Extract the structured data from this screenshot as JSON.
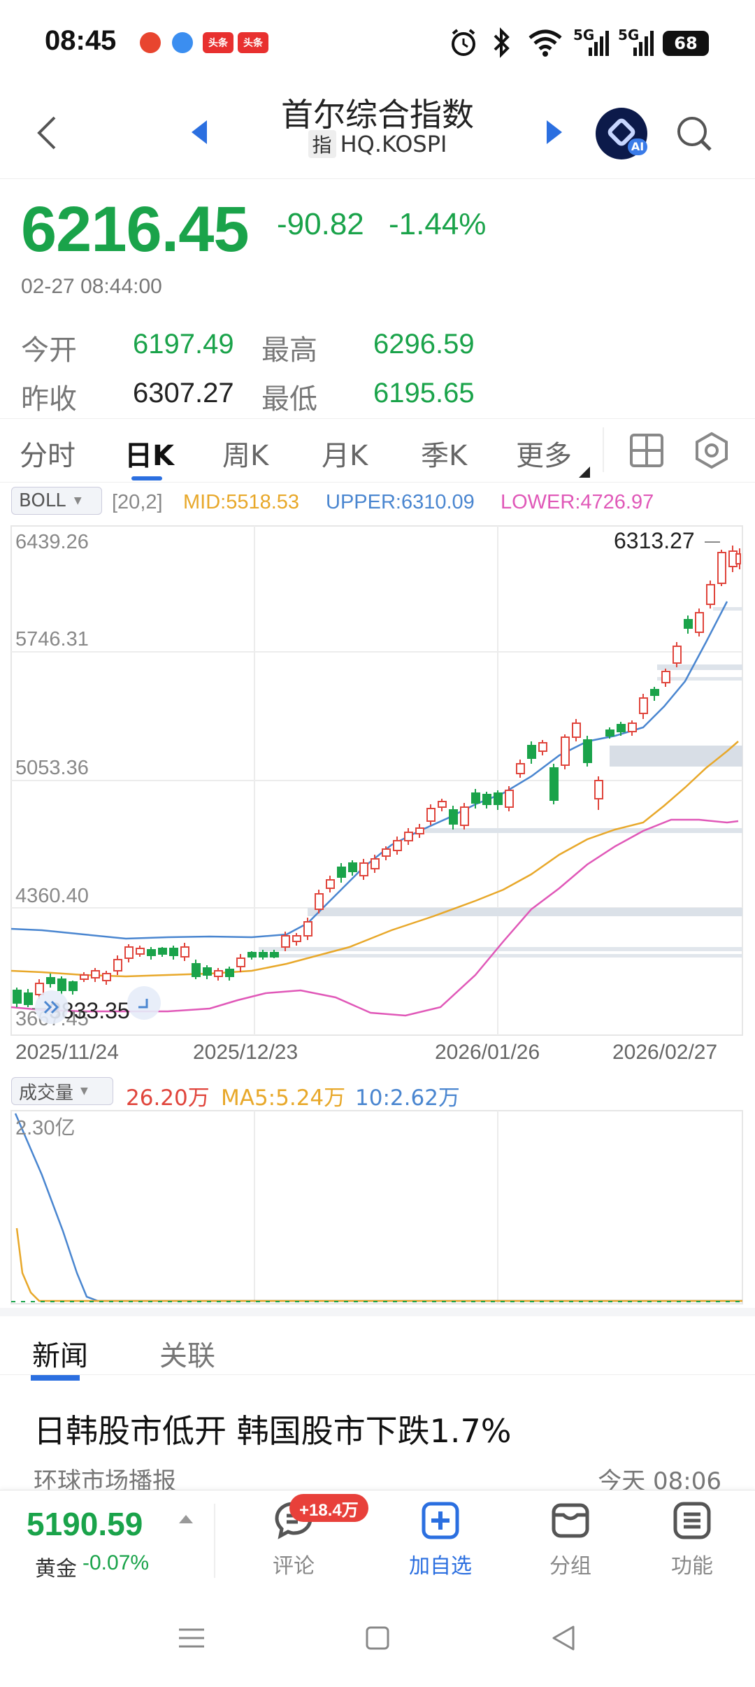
{
  "status_bar": {
    "time": "08:45",
    "notifications": [
      "头条",
      "头条"
    ],
    "network_labels": [
      "5G",
      "5G"
    ],
    "battery": "68"
  },
  "header": {
    "title": "首尔综合指数",
    "tag": "指",
    "code": "HQ.KOSPI",
    "ai_label": "AI"
  },
  "quote": {
    "price": "6216.45",
    "change": "-90.82",
    "change_pct": "-1.44%",
    "datetime": "02-27 08:44:00",
    "open_label": "今开",
    "open": "6197.49",
    "high_label": "最高",
    "high": "6296.59",
    "prev_close_label": "昨收",
    "prev_close": "6307.27",
    "low_label": "最低",
    "low": "6195.65"
  },
  "tabs": {
    "items": [
      "分时",
      "日K",
      "周K",
      "月K",
      "季K",
      "更多"
    ],
    "active": "日K"
  },
  "indicator": {
    "name": "BOLL",
    "params": "[20,2]",
    "mid": "MID:5518.53",
    "upper": "UPPER:6310.09",
    "lower": "LOWER:4726.97"
  },
  "chart_data": {
    "type": "candlestick",
    "y_ticks": [
      "6439.26",
      "5746.31",
      "5053.36",
      "4360.40",
      "3667.45"
    ],
    "x_ticks": [
      "2025/11/24",
      "2025/12/23",
      "2026/01/26",
      "2026/02/27"
    ],
    "annotations": {
      "high_marker": "6313.27",
      "low_marker": "3833.35"
    },
    "ylim": [
      3667.45,
      6439.26
    ],
    "colors": {
      "up": "#e0453c",
      "down": "#1aa34a",
      "mid": "#e8a82a",
      "upper": "#4a86d0",
      "lower": "#e058b8"
    }
  },
  "volume": {
    "name": "成交量",
    "value": "26.20万",
    "ma5": "MA5:5.24万",
    "ma10": "10:2.62万",
    "y_top": "2.30亿"
  },
  "news": {
    "tabs": [
      "新闻",
      "关联"
    ],
    "headline": "日韩股市低开 韩国股市下跌1.7%",
    "source": "环球市场播报",
    "time": "今天 08:06"
  },
  "bottom_bar": {
    "gold_price": "5190.59",
    "gold_name": "黄金",
    "gold_change": "-0.07%",
    "comment_badge": "+18.4万",
    "items": [
      {
        "label": "评论",
        "icon": "comment-icon"
      },
      {
        "label": "加自选",
        "icon": "add-watchlist-icon"
      },
      {
        "label": "分组",
        "icon": "group-icon"
      },
      {
        "label": "功能",
        "icon": "function-icon"
      }
    ]
  }
}
